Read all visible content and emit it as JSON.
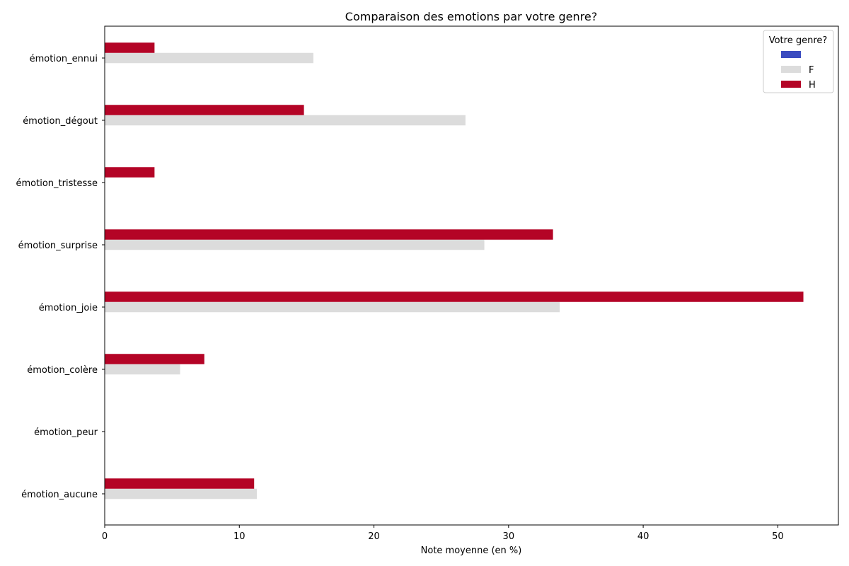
{
  "chart_data": {
    "type": "bar",
    "orientation": "horizontal",
    "title": "Comparaison des emotions par votre genre?",
    "xlabel": "Note moyenne (en %)",
    "ylabel": "",
    "xlim": [
      0,
      54.5
    ],
    "xticks": [
      0,
      10,
      20,
      30,
      40,
      50
    ],
    "categories": [
      "émotion_ennui",
      "émotion_dégout",
      "émotion_tristesse",
      "émotion_surprise",
      "émotion_joie",
      "émotion_colère",
      "émotion_peur",
      "émotion_aucune"
    ],
    "legend_title": "Votre genre?",
    "legend_position": "top-right",
    "grid": false,
    "series": [
      {
        "name": "",
        "color": "#3b4cc0",
        "values": [
          0,
          0,
          0,
          0,
          0,
          0,
          0,
          0
        ]
      },
      {
        "name": "F",
        "color": "#dcdcdc",
        "values": [
          15.5,
          26.8,
          0,
          28.2,
          33.8,
          5.6,
          0,
          11.3
        ]
      },
      {
        "name": "H",
        "color": "#b40426",
        "values": [
          3.7,
          14.8,
          3.7,
          33.3,
          51.9,
          7.4,
          0,
          11.1
        ]
      }
    ]
  }
}
